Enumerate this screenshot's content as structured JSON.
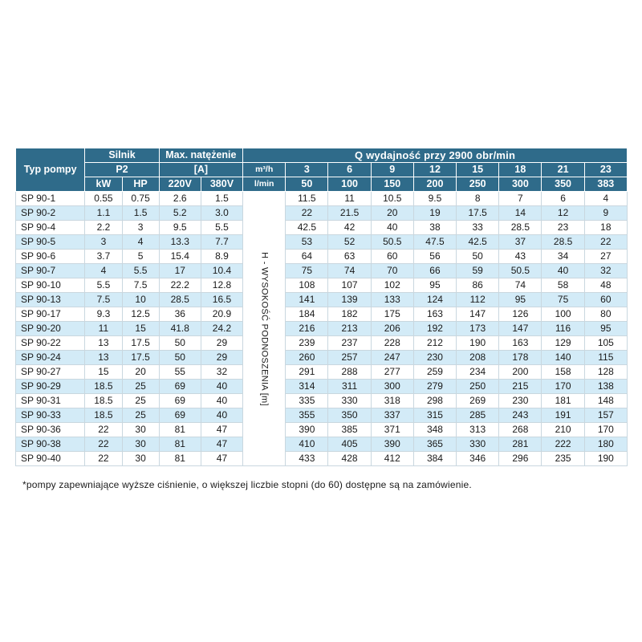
{
  "headers": {
    "typ_pompy": "Typ pompy",
    "silnik": "Silnik",
    "p2": "P2",
    "kw": "kW",
    "hp": "HP",
    "max_natezenie": "Max. natężenie",
    "amp": "[A]",
    "v220": "220V",
    "v380": "380V",
    "q_title": "Q wydajność przy 2900 obr/min",
    "m3h": "m³/h",
    "lmin": "l/min"
  },
  "flow_m3h": [
    "3",
    "6",
    "9",
    "12",
    "15",
    "18",
    "21",
    "23"
  ],
  "flow_lmin": [
    "50",
    "100",
    "150",
    "200",
    "250",
    "300",
    "350",
    "383"
  ],
  "vertical_label": "H - WYSOKOŚĆ PODNOSZENIA [m]",
  "rows": [
    {
      "name": "SP 90-1",
      "kw": "0.55",
      "hp": "0.75",
      "a220": "2.6",
      "a380": "1.5",
      "h": [
        "11.5",
        "11",
        "10.5",
        "9.5",
        "8",
        "7",
        "6",
        "4"
      ]
    },
    {
      "name": "SP 90-2",
      "kw": "1.1",
      "hp": "1.5",
      "a220": "5.2",
      "a380": "3.0",
      "h": [
        "22",
        "21.5",
        "20",
        "19",
        "17.5",
        "14",
        "12",
        "9"
      ]
    },
    {
      "name": "SP 90-4",
      "kw": "2.2",
      "hp": "3",
      "a220": "9.5",
      "a380": "5.5",
      "h": [
        "42.5",
        "42",
        "40",
        "38",
        "33",
        "28.5",
        "23",
        "18"
      ]
    },
    {
      "name": "SP 90-5",
      "kw": "3",
      "hp": "4",
      "a220": "13.3",
      "a380": "7.7",
      "h": [
        "53",
        "52",
        "50.5",
        "47.5",
        "42.5",
        "37",
        "28.5",
        "22"
      ]
    },
    {
      "name": "SP 90-6",
      "kw": "3.7",
      "hp": "5",
      "a220": "15.4",
      "a380": "8.9",
      "h": [
        "64",
        "63",
        "60",
        "56",
        "50",
        "43",
        "34",
        "27"
      ]
    },
    {
      "name": "SP 90-7",
      "kw": "4",
      "hp": "5.5",
      "a220": "17",
      "a380": "10.4",
      "h": [
        "75",
        "74",
        "70",
        "66",
        "59",
        "50.5",
        "40",
        "32"
      ]
    },
    {
      "name": "SP 90-10",
      "kw": "5.5",
      "hp": "7.5",
      "a220": "22.2",
      "a380": "12.8",
      "h": [
        "108",
        "107",
        "102",
        "95",
        "86",
        "74",
        "58",
        "48"
      ]
    },
    {
      "name": "SP 90-13",
      "kw": "7.5",
      "hp": "10",
      "a220": "28.5",
      "a380": "16.5",
      "h": [
        "141",
        "139",
        "133",
        "124",
        "112",
        "95",
        "75",
        "60"
      ]
    },
    {
      "name": "SP 90-17",
      "kw": "9.3",
      "hp": "12.5",
      "a220": "36",
      "a380": "20.9",
      "h": [
        "184",
        "182",
        "175",
        "163",
        "147",
        "126",
        "100",
        "80"
      ]
    },
    {
      "name": "SP 90-20",
      "kw": "11",
      "hp": "15",
      "a220": "41.8",
      "a380": "24.2",
      "h": [
        "216",
        "213",
        "206",
        "192",
        "173",
        "147",
        "116",
        "95"
      ]
    },
    {
      "name": "SP 90-22",
      "kw": "13",
      "hp": "17.5",
      "a220": "50",
      "a380": "29",
      "h": [
        "239",
        "237",
        "228",
        "212",
        "190",
        "163",
        "129",
        "105"
      ]
    },
    {
      "name": "SP 90-24",
      "kw": "13",
      "hp": "17.5",
      "a220": "50",
      "a380": "29",
      "h": [
        "260",
        "257",
        "247",
        "230",
        "208",
        "178",
        "140",
        "115"
      ]
    },
    {
      "name": "SP 90-27",
      "kw": "15",
      "hp": "20",
      "a220": "55",
      "a380": "32",
      "h": [
        "291",
        "288",
        "277",
        "259",
        "234",
        "200",
        "158",
        "128"
      ]
    },
    {
      "name": "SP 90-29",
      "kw": "18.5",
      "hp": "25",
      "a220": "69",
      "a380": "40",
      "h": [
        "314",
        "311",
        "300",
        "279",
        "250",
        "215",
        "170",
        "138"
      ]
    },
    {
      "name": "SP 90-31",
      "kw": "18.5",
      "hp": "25",
      "a220": "69",
      "a380": "40",
      "h": [
        "335",
        "330",
        "318",
        "298",
        "269",
        "230",
        "181",
        "148"
      ]
    },
    {
      "name": "SP 90-33",
      "kw": "18.5",
      "hp": "25",
      "a220": "69",
      "a380": "40",
      "h": [
        "355",
        "350",
        "337",
        "315",
        "285",
        "243",
        "191",
        "157"
      ]
    },
    {
      "name": "SP 90-36",
      "kw": "22",
      "hp": "30",
      "a220": "81",
      "a380": "47",
      "h": [
        "390",
        "385",
        "371",
        "348",
        "313",
        "268",
        "210",
        "170"
      ]
    },
    {
      "name": "SP 90-38",
      "kw": "22",
      "hp": "30",
      "a220": "81",
      "a380": "47",
      "h": [
        "410",
        "405",
        "390",
        "365",
        "330",
        "281",
        "222",
        "180"
      ]
    },
    {
      "name": "SP 90-40",
      "kw": "22",
      "hp": "30",
      "a220": "81",
      "a380": "47",
      "h": [
        "433",
        "428",
        "412",
        "384",
        "346",
        "296",
        "235",
        "190"
      ]
    }
  ],
  "footnote": "*pompy zapewniające wyższe ciśnienie, o większej liczbie stopni (do 60) dostępne są na zamówienie."
}
